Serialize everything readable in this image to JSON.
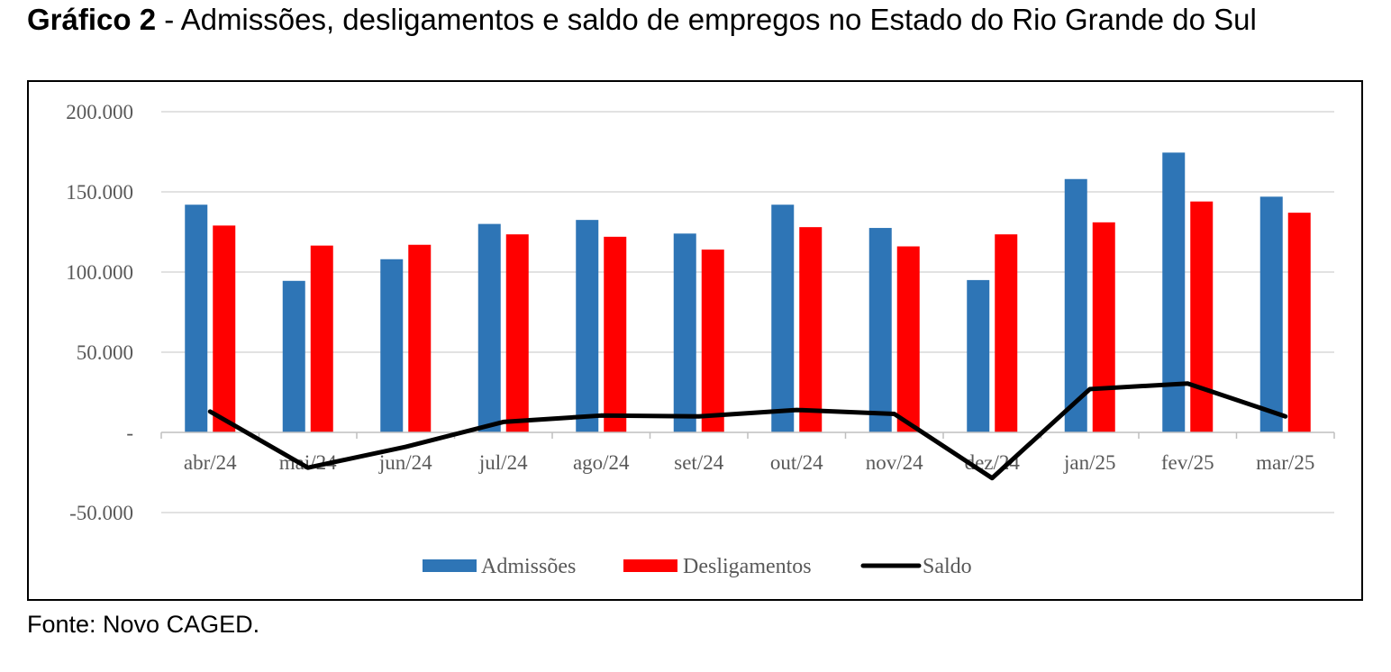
{
  "title": {
    "label": "Gráfico 2",
    "separator": " - ",
    "text": "Admissões, desligamentos e saldo de empregos no Estado do Rio Grande do Sul"
  },
  "source": "Fonte: Novo CAGED.",
  "chart_data": {
    "type": "bar",
    "categories": [
      "abr/24",
      "mai/24",
      "jun/24",
      "jul/24",
      "ago/24",
      "set/24",
      "out/24",
      "nov/24",
      "dez/24",
      "jan/25",
      "fev/25",
      "mar/25"
    ],
    "series": [
      {
        "name": "Admissões",
        "type": "bar",
        "color": "#2E75B6",
        "values": [
          142000,
          94500,
          108000,
          130000,
          132500,
          124000,
          142000,
          127500,
          95000,
          158000,
          174500,
          147000
        ]
      },
      {
        "name": "Desligamentos",
        "type": "bar",
        "color": "#FF0000",
        "values": [
          129000,
          116500,
          117000,
          123500,
          122000,
          114000,
          128000,
          116000,
          123500,
          131000,
          144000,
          137000
        ]
      },
      {
        "name": "Saldo",
        "type": "line",
        "color": "#000000",
        "values": [
          13000,
          -22000,
          -9000,
          6500,
          10500,
          10000,
          14000,
          11500,
          -28500,
          27000,
          30500,
          10000
        ]
      }
    ],
    "y_ticks": [
      {
        "value": 200000,
        "label": "200.000"
      },
      {
        "value": 150000,
        "label": "150.000"
      },
      {
        "value": 100000,
        "label": "100.000"
      },
      {
        "value": 50000,
        "label": "50.000"
      },
      {
        "value": 0,
        "label": "-"
      },
      {
        "value": -50000,
        "label": "-50.000"
      }
    ],
    "ylim": [
      -50000,
      200000
    ],
    "grid": true,
    "legend_position": "bottom"
  }
}
